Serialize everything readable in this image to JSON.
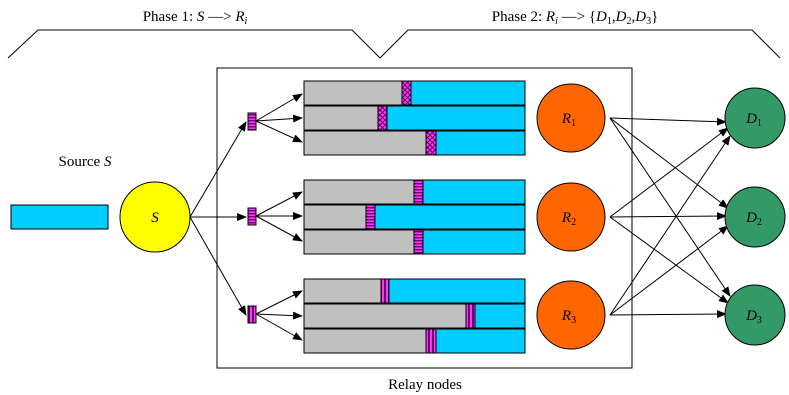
{
  "phase1": {
    "prefix": "Phase 1: ",
    "s": "S",
    "arrow": " —> ",
    "r": "R",
    "sub": "i"
  },
  "phase2": {
    "prefix": "Phase 2: ",
    "r": "R",
    "sub": "i",
    "arrow": " —> {",
    "d": "D",
    "d1": "1",
    "comma1": ",",
    "d2": "2",
    "comma2": ",",
    "d3": "3",
    "close": "}"
  },
  "source": {
    "label": "Source ",
    "name": "S",
    "node": "S"
  },
  "relays": [
    {
      "letter": "R",
      "sub": "1"
    },
    {
      "letter": "R",
      "sub": "2"
    },
    {
      "letter": "R",
      "sub": "3"
    }
  ],
  "destinations": [
    {
      "letter": "D",
      "sub": "1"
    },
    {
      "letter": "D",
      "sub": "2"
    },
    {
      "letter": "D",
      "sub": "3"
    }
  ],
  "relay_caption": "Relay nodes",
  "colors": {
    "source_node": "#ffff00",
    "relay_node": "#ff6600",
    "dest_node": "#339966",
    "packet": "#00ccff",
    "buffer_gray": "#c0c0c0",
    "marker": "#cc00cc"
  }
}
